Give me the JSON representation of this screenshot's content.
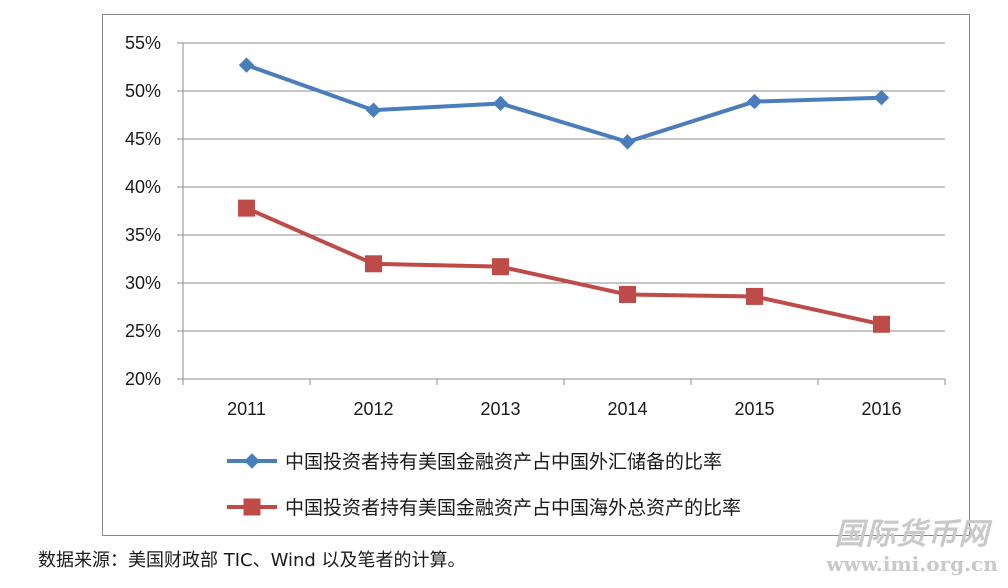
{
  "chart_data": {
    "type": "line",
    "categories": [
      "2011",
      "2012",
      "2013",
      "2014",
      "2015",
      "2016"
    ],
    "ylim": [
      20,
      55
    ],
    "yticks": [
      20,
      25,
      30,
      35,
      40,
      45,
      50,
      55
    ],
    "ytick_format": "percent",
    "grid": true,
    "legend_position": "bottom",
    "series": [
      {
        "name": "中国投资者持有美国金融资产占中国外汇储备的比率",
        "values": [
          52.7,
          48.0,
          48.7,
          44.7,
          48.9,
          49.3
        ],
        "color": "#4a7ebb",
        "marker": "diamond"
      },
      {
        "name": "中国投资者持有美国金融资产占中国海外总资产的比率",
        "values": [
          37.8,
          32.0,
          31.7,
          28.8,
          28.6,
          25.7
        ],
        "color": "#be4b48",
        "marker": "square"
      }
    ]
  },
  "source_note": "数据来源：美国财政部 TIC、Wind 以及笔者的计算。",
  "watermark": {
    "title": "国际货币网",
    "url": "www.imi.org.cn"
  }
}
